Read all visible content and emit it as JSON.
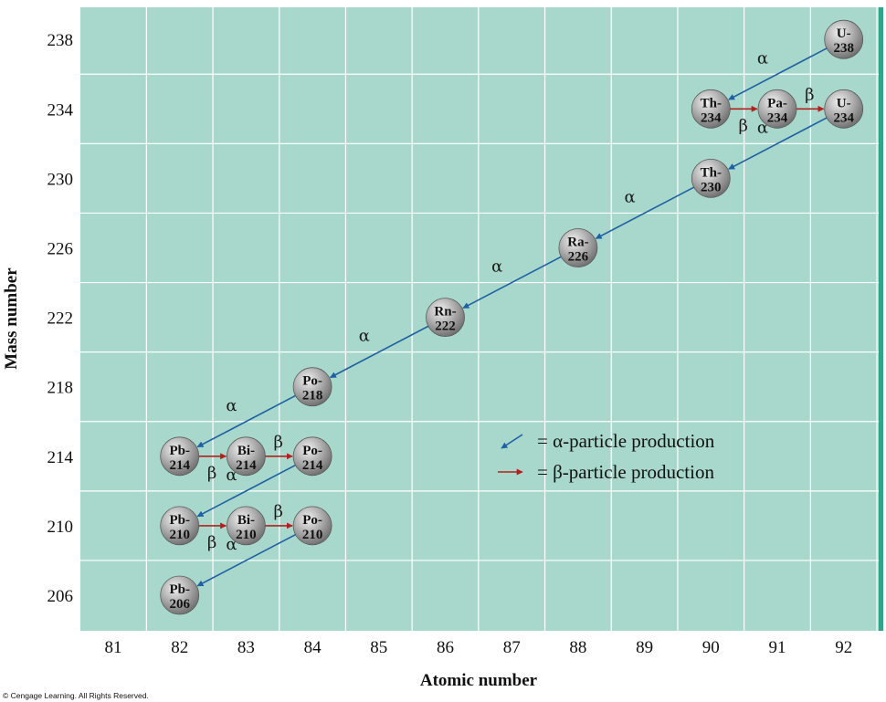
{
  "chart_data": {
    "type": "diagram",
    "xlabel": "Atomic number",
    "ylabel": "Mass number",
    "x_ticks": [
      81,
      82,
      83,
      84,
      85,
      86,
      87,
      88,
      89,
      90,
      91,
      92
    ],
    "y_ticks": [
      206,
      210,
      214,
      218,
      222,
      226,
      230,
      234,
      238
    ],
    "grid": true,
    "nuclides": [
      {
        "symbol": "U-",
        "mass": "238",
        "z": 92,
        "a": 238
      },
      {
        "symbol": "Th-",
        "mass": "234",
        "z": 90,
        "a": 234
      },
      {
        "symbol": "Pa-",
        "mass": "234",
        "z": 91,
        "a": 234
      },
      {
        "symbol": "U-",
        "mass": "234",
        "z": 92,
        "a": 234
      },
      {
        "symbol": "Th-",
        "mass": "230",
        "z": 90,
        "a": 230
      },
      {
        "symbol": "Ra-",
        "mass": "226",
        "z": 88,
        "a": 226
      },
      {
        "symbol": "Rn-",
        "mass": "222",
        "z": 86,
        "a": 222
      },
      {
        "symbol": "Po-",
        "mass": "218",
        "z": 84,
        "a": 218
      },
      {
        "symbol": "Pb-",
        "mass": "214",
        "z": 82,
        "a": 214
      },
      {
        "symbol": "Bi-",
        "mass": "214",
        "z": 83,
        "a": 214
      },
      {
        "symbol": "Po-",
        "mass": "214",
        "z": 84,
        "a": 214
      },
      {
        "symbol": "Pb-",
        "mass": "210",
        "z": 82,
        "a": 210
      },
      {
        "symbol": "Bi-",
        "mass": "210",
        "z": 83,
        "a": 210
      },
      {
        "symbol": "Po-",
        "mass": "210",
        "z": 84,
        "a": 210
      },
      {
        "symbol": "Pb-",
        "mass": "206",
        "z": 82,
        "a": 206
      }
    ],
    "decays": [
      {
        "type": "alpha",
        "from": [
          92,
          238
        ],
        "to": [
          90,
          234
        ]
      },
      {
        "type": "beta",
        "from": [
          90,
          234
        ],
        "to": [
          91,
          234
        ]
      },
      {
        "type": "beta",
        "from": [
          91,
          234
        ],
        "to": [
          92,
          234
        ]
      },
      {
        "type": "alpha",
        "from": [
          92,
          234
        ],
        "to": [
          90,
          230
        ]
      },
      {
        "type": "alpha",
        "from": [
          90,
          230
        ],
        "to": [
          88,
          226
        ]
      },
      {
        "type": "alpha",
        "from": [
          88,
          226
        ],
        "to": [
          86,
          222
        ]
      },
      {
        "type": "alpha",
        "from": [
          86,
          222
        ],
        "to": [
          84,
          218
        ]
      },
      {
        "type": "alpha",
        "from": [
          84,
          218
        ],
        "to": [
          82,
          214
        ]
      },
      {
        "type": "beta",
        "from": [
          82,
          214
        ],
        "to": [
          83,
          214
        ]
      },
      {
        "type": "beta",
        "from": [
          83,
          214
        ],
        "to": [
          84,
          214
        ]
      },
      {
        "type": "alpha",
        "from": [
          84,
          214
        ],
        "to": [
          82,
          210
        ]
      },
      {
        "type": "beta",
        "from": [
          82,
          210
        ],
        "to": [
          83,
          210
        ]
      },
      {
        "type": "beta",
        "from": [
          83,
          210
        ],
        "to": [
          84,
          210
        ]
      },
      {
        "type": "alpha",
        "from": [
          84,
          210
        ],
        "to": [
          82,
          206
        ]
      }
    ],
    "legend": [
      {
        "type": "alpha",
        "label": "= α-particle production"
      },
      {
        "type": "beta",
        "label": "= β-particle production"
      }
    ],
    "alpha_symbol": "α",
    "beta_symbol": "β"
  },
  "colors": {
    "background": "#a8d8cc",
    "grid": "#ffffff",
    "right_border": "#2fa58c",
    "alpha_arrow": "#1f5fa3",
    "beta_arrow": "#b32020",
    "sphere_light": "#f2f2f2",
    "sphere_dark": "#707070"
  },
  "credit": "© Cengage Learning. All Rights Reserved."
}
